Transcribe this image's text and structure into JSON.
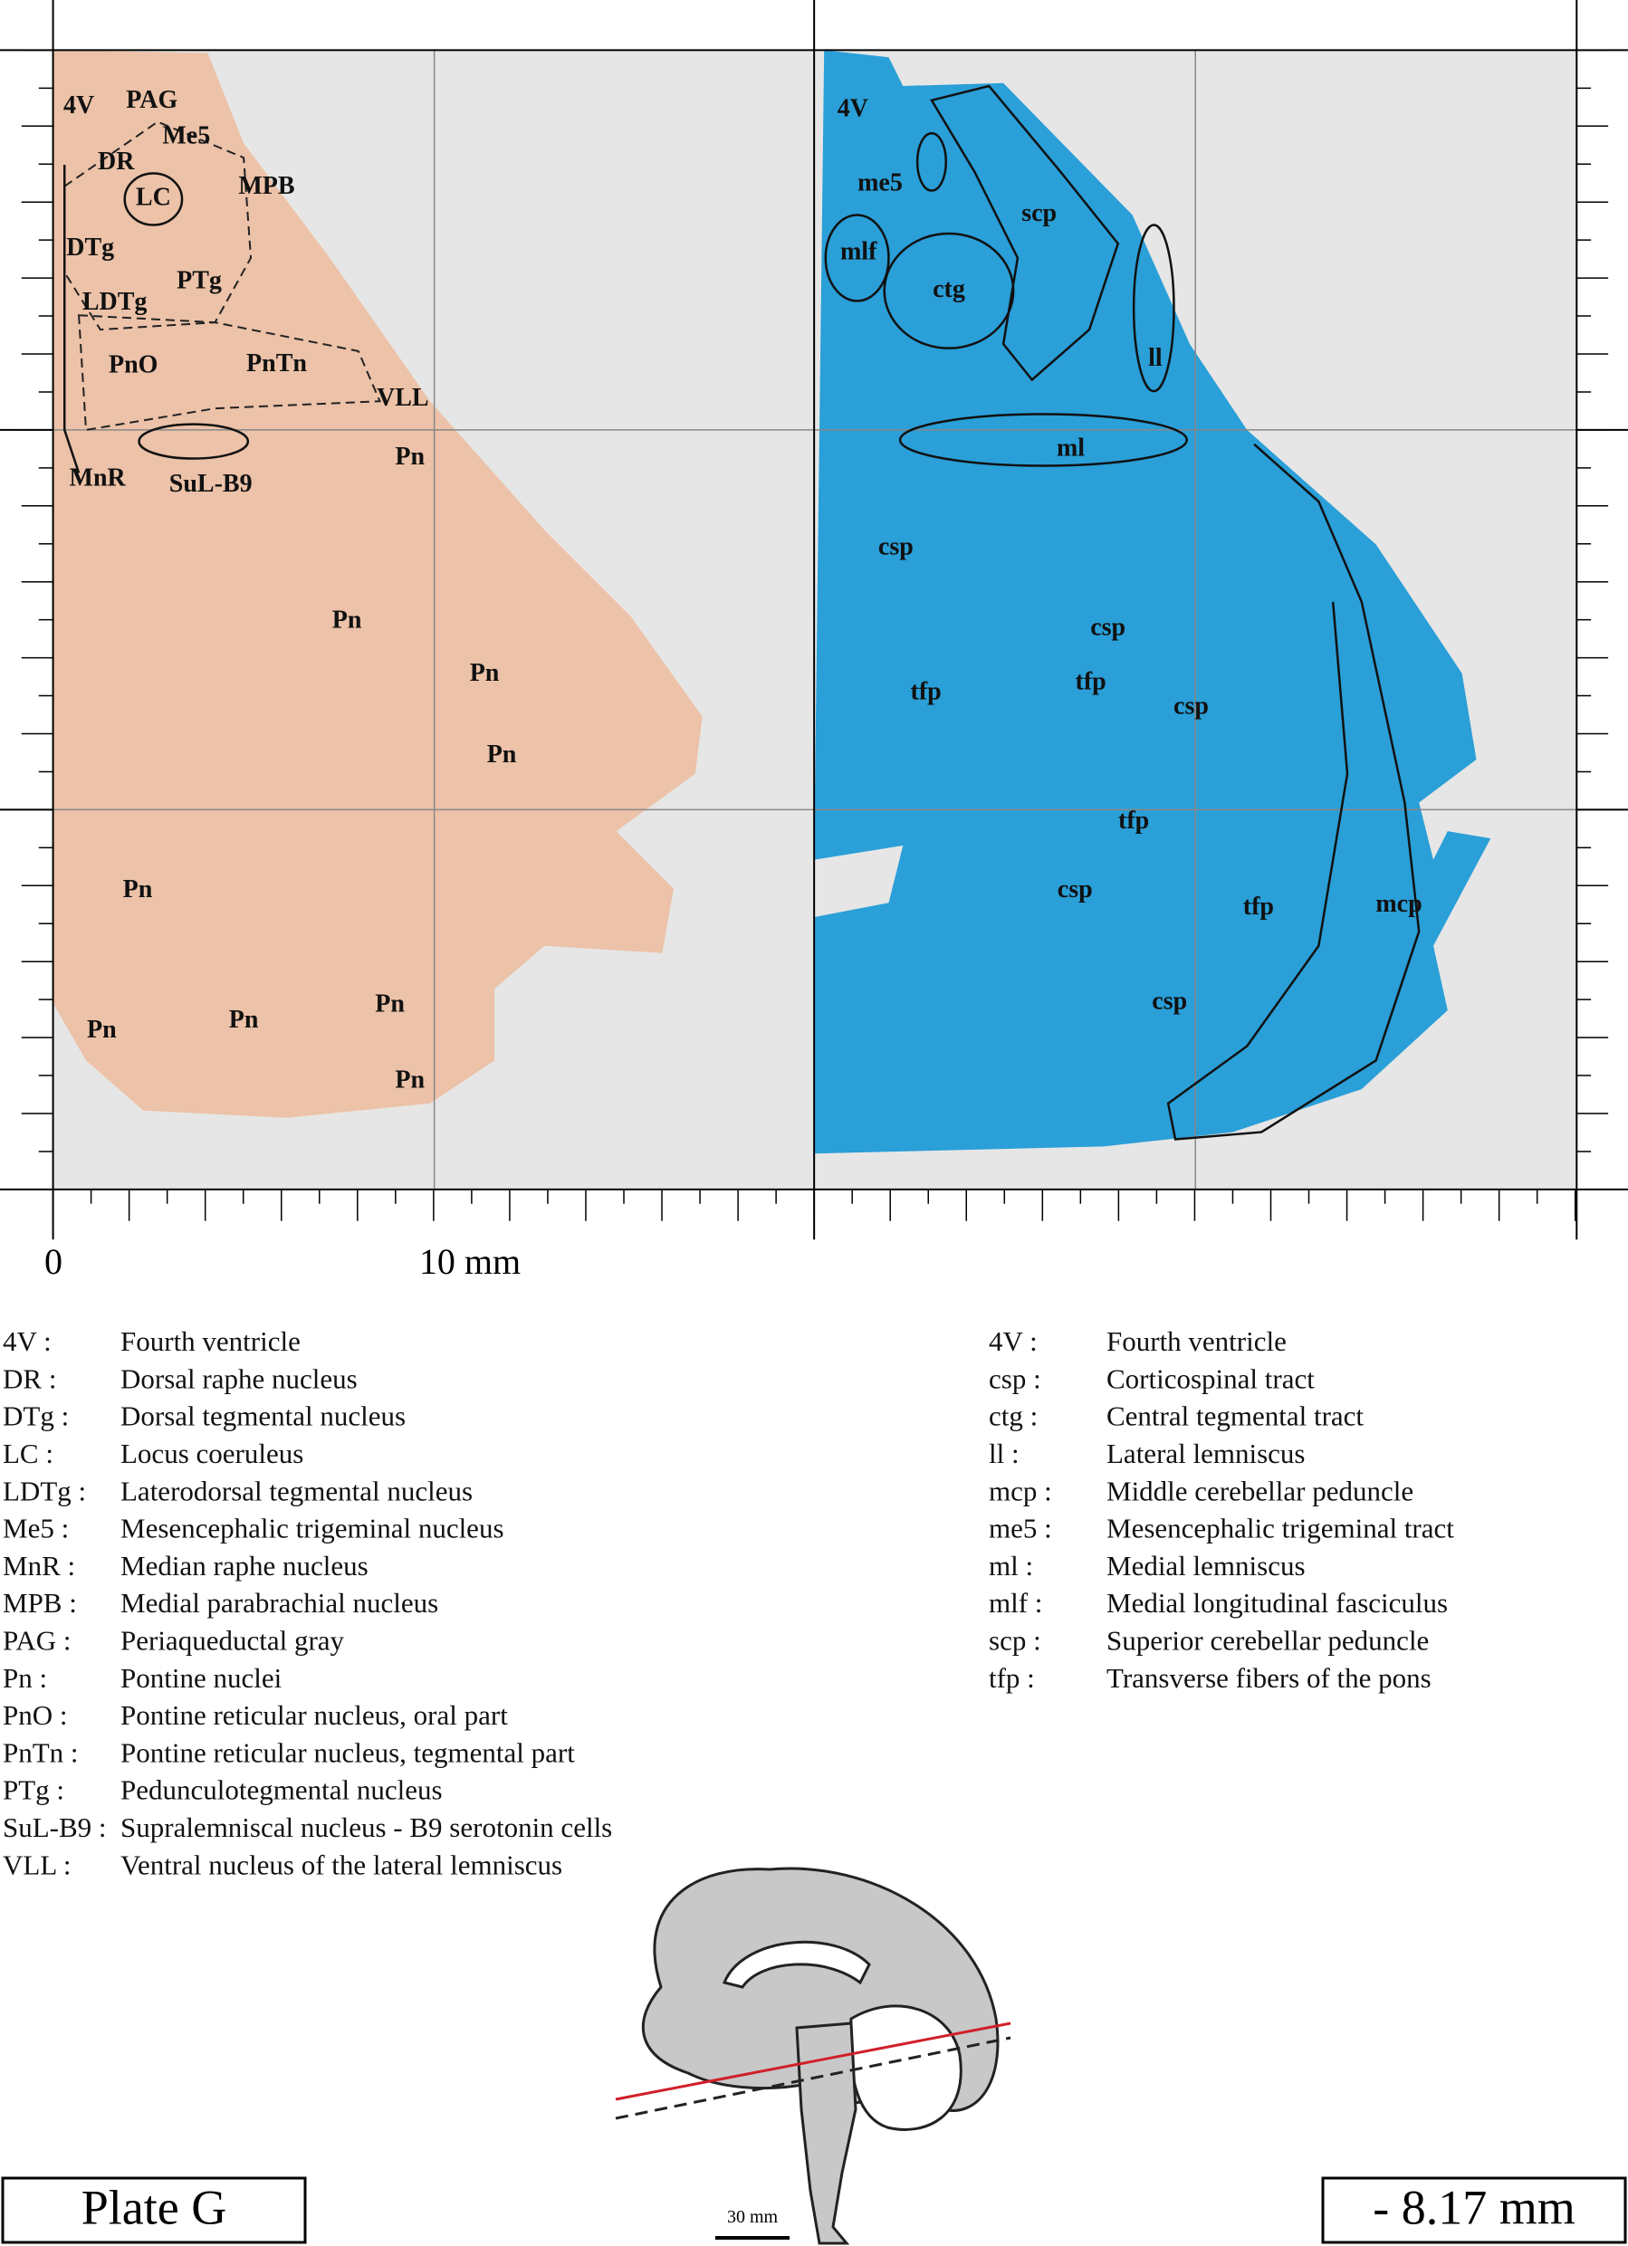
{
  "left_panel": {
    "labels": [
      "4V",
      "PAG",
      "Me5",
      "DR",
      "LC",
      "MPB",
      "DTg",
      "PTg",
      "LDTg",
      "PnO",
      "PnTn",
      "VLL",
      "Pn",
      "MnR",
      "SuL-B9",
      "Pn",
      "Pn",
      "Pn",
      "Pn",
      "Pn",
      "Pn",
      "Pn",
      "Pn"
    ]
  },
  "right_panel": {
    "labels": [
      "4V",
      "me5",
      "scp",
      "mlf",
      "ctg",
      "ll",
      "ml",
      "csp",
      "csp",
      "tfp",
      "tfp",
      "csp",
      "tfp",
      "csp",
      "tfp",
      "mcp",
      "csp"
    ]
  },
  "scale": {
    "zero": "0",
    "ten": "10 mm"
  },
  "legend_left": [
    [
      "4V :",
      "Fourth ventricle"
    ],
    [
      "DR :",
      "Dorsal raphe nucleus"
    ],
    [
      "DTg :",
      "Dorsal tegmental nucleus"
    ],
    [
      "LC :",
      "Locus coeruleus"
    ],
    [
      "LDTg :",
      "Laterodorsal tegmental nucleus"
    ],
    [
      "Me5 :",
      "Mesencephalic trigeminal nucleus"
    ],
    [
      "MnR :",
      "Median raphe nucleus"
    ],
    [
      "MPB :",
      "Medial parabrachial nucleus"
    ],
    [
      "PAG :",
      "Periaqueductal gray"
    ],
    [
      "Pn :",
      "Pontine nuclei"
    ],
    [
      "PnO :",
      "Pontine reticular nucleus, oral part"
    ],
    [
      "PnTn :",
      "Pontine reticular nucleus, tegmental part"
    ],
    [
      "PTg :",
      "Pedunculotegmental nucleus"
    ],
    [
      "SuL-B9 :",
      "Supralemniscal nucleus - B9 serotonin cells"
    ],
    [
      "VLL :",
      "Ventral nucleus of the lateral lemniscus"
    ]
  ],
  "legend_right": [
    [
      "4V :",
      "Fourth ventricle"
    ],
    [
      "csp :",
      "Corticospinal tract"
    ],
    [
      "ctg :",
      "Central tegmental tract"
    ],
    [
      "ll :",
      "Lateral lemniscus"
    ],
    [
      "mcp :",
      "Middle cerebellar peduncle"
    ],
    [
      "me5 :",
      "Mesencephalic trigeminal tract"
    ],
    [
      "ml :",
      "Medial lemniscus"
    ],
    [
      "mlf :",
      "Medial longitudinal fasciculus"
    ],
    [
      "scp :",
      "Superior cerebellar peduncle"
    ],
    [
      "tfp :",
      "Transverse fibers of the pons"
    ]
  ],
  "brain_scale": "30 mm",
  "plate": "Plate G",
  "level": "- 8.17 mm"
}
